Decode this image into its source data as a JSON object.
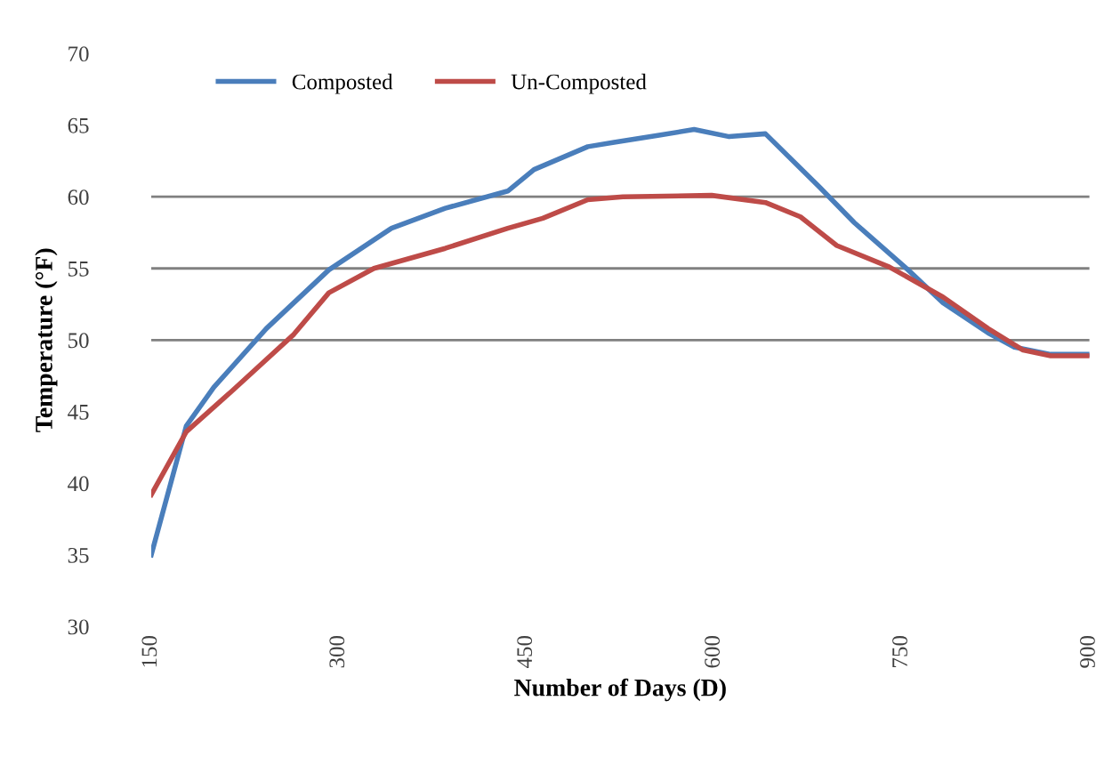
{
  "chart_data": {
    "type": "line",
    "xlabel": "Number of Days (D)",
    "ylabel": "Temperature (°F)",
    "xlim": [
      150,
      900
    ],
    "xticks": [
      150,
      300,
      450,
      600,
      750,
      900
    ],
    "ylim": [
      30,
      70
    ],
    "yticks": [
      30,
      35,
      40,
      45,
      50,
      55,
      60,
      65,
      70
    ],
    "grid": false,
    "legend": "top left",
    "line_style": "solid",
    "marker": "none",
    "ref_lines": [
      {
        "axis": "y",
        "value": 50,
        "color": "#808080"
      },
      {
        "axis": "y",
        "value": 55,
        "color": "#808080"
      },
      {
        "axis": "y",
        "value": 60,
        "color": "#808080"
      }
    ],
    "series": [
      {
        "name": "Composted",
        "color": "#4a7ebb",
        "x": [
          150,
          178,
          200,
          242,
          292,
          342,
          385,
          435,
          456,
          499,
          520,
          556,
          584,
          612,
          641,
          684,
          712,
          755,
          783,
          819,
          840,
          869,
          900
        ],
        "values": [
          35.0,
          44.0,
          46.7,
          50.8,
          54.9,
          57.8,
          59.2,
          60.4,
          61.9,
          63.5,
          63.8,
          64.3,
          64.7,
          64.2,
          64.4,
          60.7,
          58.2,
          54.9,
          52.6,
          50.5,
          49.5,
          49.0,
          49.0
        ]
      },
      {
        "name": "Un-Composted",
        "color": "#be4b48",
        "x": [
          150,
          178,
          214,
          264,
          292,
          328,
          385,
          435,
          463,
          499,
          527,
          598,
          641,
          669,
          698,
          740,
          783,
          819,
          847,
          869,
          900
        ],
        "values": [
          39.2,
          43.6,
          46.4,
          50.4,
          53.3,
          55.0,
          56.4,
          57.8,
          58.5,
          59.8,
          60.0,
          60.1,
          59.6,
          58.6,
          56.6,
          55.1,
          53.0,
          50.8,
          49.3,
          48.9,
          48.9
        ]
      }
    ]
  }
}
